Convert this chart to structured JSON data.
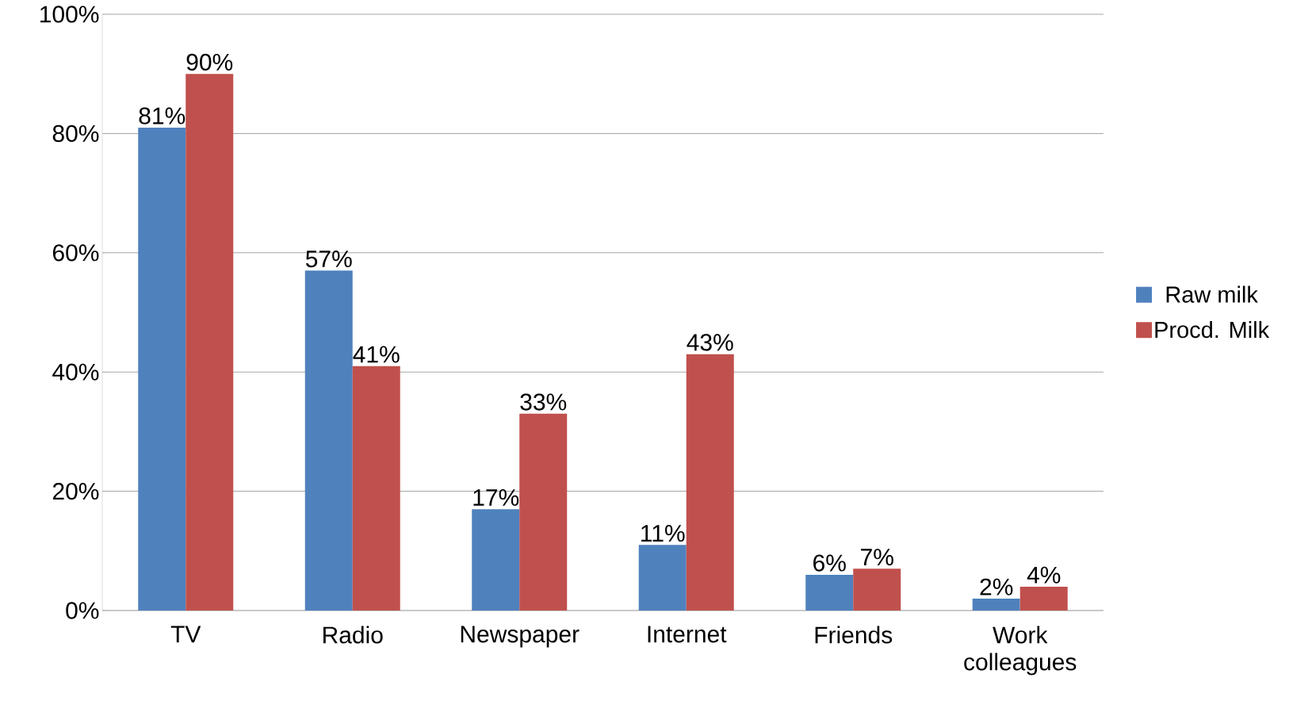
{
  "chart_data": {
    "type": "bar",
    "categories": [
      "TV",
      "Radio",
      "Newspaper",
      "Internet",
      "Friends",
      "Work colleagues"
    ],
    "series": [
      {
        "name": "Raw milk",
        "color": "#4f81bd",
        "values": [
          81,
          57,
          17,
          11,
          6,
          2
        ],
        "value_labels": [
          "81%",
          "57%",
          "17%",
          "11%",
          "6%",
          "2%"
        ]
      },
      {
        "name": "Procd. Milk",
        "color": "#c0504d",
        "values": [
          90,
          41,
          33,
          43,
          7,
          4
        ],
        "value_labels": [
          "90%",
          "41%",
          "33%",
          "43%",
          "7%",
          "4%"
        ]
      }
    ],
    "ylim": [
      0,
      100
    ],
    "yticks": [
      {
        "value": 0,
        "label": "0%"
      },
      {
        "value": 20,
        "label": "20%"
      },
      {
        "value": 40,
        "label": "40%"
      },
      {
        "value": 60,
        "label": "60%"
      },
      {
        "value": 80,
        "label": "80%"
      },
      {
        "value": 100,
        "label": "100%"
      }
    ],
    "grid": "y",
    "legend": "right"
  }
}
